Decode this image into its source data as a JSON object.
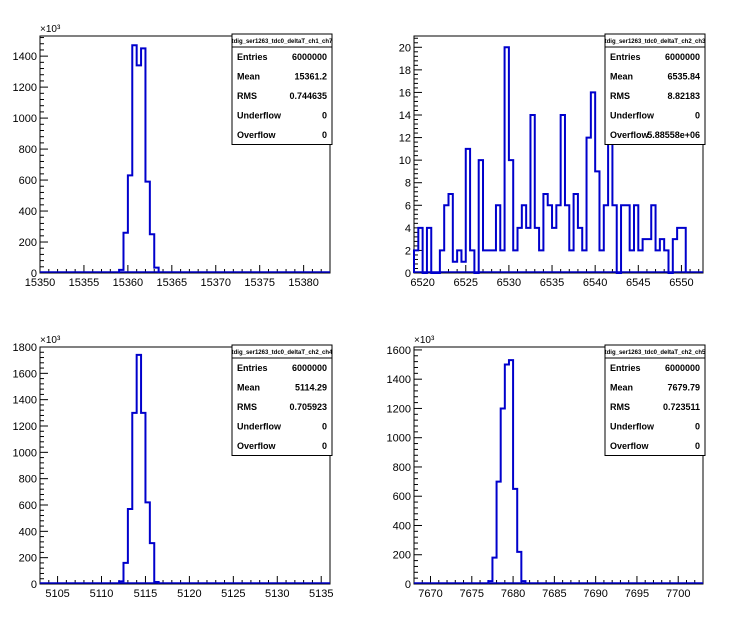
{
  "chart_data": [
    {
      "type": "bar",
      "name": "tdig_ser1263_tdc0_deltaT_ch1_ch7",
      "exponent_label": "×10³",
      "xlim": [
        15350,
        15383
      ],
      "ylim": [
        0,
        1530
      ],
      "xticks": [
        15350,
        15355,
        15360,
        15365,
        15370,
        15375,
        15380
      ],
      "yticks": [
        0,
        200,
        400,
        600,
        800,
        1000,
        1200,
        1400
      ],
      "ytick_labels": [
        "0",
        "200",
        "400",
        "600",
        "800",
        "1000",
        "1200",
        "1400"
      ],
      "bins": [
        {
          "x": 15359.0,
          "y": 20
        },
        {
          "x": 15359.5,
          "y": 260
        },
        {
          "x": 15360.0,
          "y": 630
        },
        {
          "x": 15360.5,
          "y": 1470
        },
        {
          "x": 15361.0,
          "y": 1340
        },
        {
          "x": 15361.5,
          "y": 1450
        },
        {
          "x": 15362.0,
          "y": 590
        },
        {
          "x": 15362.5,
          "y": 250
        },
        {
          "x": 15363.0,
          "y": 35
        }
      ],
      "bin_width": 0.5,
      "stats": {
        "title": "tdig_ser1263_tdc0_deltaT_ch1_ch7",
        "rows": [
          {
            "label": "Entries",
            "value": "6000000"
          },
          {
            "label": "Mean",
            "value": "15361.2"
          },
          {
            "label": "RMS",
            "value": "0.744635"
          },
          {
            "label": "Underflow",
            "value": "0"
          },
          {
            "label": "Overflow",
            "value": "0"
          }
        ]
      },
      "line_color": "#0000cc"
    },
    {
      "type": "bar",
      "name": "tdig_ser1263_tdc0_deltaT_ch2_ch3",
      "exponent_label": "",
      "xlim": [
        6519,
        6552.5
      ],
      "ylim": [
        0,
        21
      ],
      "xticks": [
        6520,
        6525,
        6530,
        6535,
        6540,
        6545,
        6550
      ],
      "yticks": [
        0,
        2,
        4,
        6,
        8,
        10,
        12,
        14,
        16,
        18,
        20
      ],
      "ytick_labels": [
        "0",
        "2",
        "4",
        "6",
        "8",
        "10",
        "12",
        "14",
        "16",
        "18",
        "20"
      ],
      "bins": [
        {
          "x": 6519.0,
          "y": 2
        },
        {
          "x": 6519.5,
          "y": 4
        },
        {
          "x": 6520.0,
          "y": 0
        },
        {
          "x": 6520.5,
          "y": 4
        },
        {
          "x": 6521.0,
          "y": 0
        },
        {
          "x": 6521.5,
          "y": 0
        },
        {
          "x": 6522.0,
          "y": 2
        },
        {
          "x": 6522.5,
          "y": 6
        },
        {
          "x": 6523.0,
          "y": 7
        },
        {
          "x": 6523.5,
          "y": 1
        },
        {
          "x": 6524.0,
          "y": 2
        },
        {
          "x": 6524.5,
          "y": 1
        },
        {
          "x": 6525.0,
          "y": 11
        },
        {
          "x": 6525.5,
          "y": 2
        },
        {
          "x": 6526.0,
          "y": 0
        },
        {
          "x": 6526.5,
          "y": 10
        },
        {
          "x": 6527.0,
          "y": 2
        },
        {
          "x": 6527.5,
          "y": 2
        },
        {
          "x": 6528.0,
          "y": 2
        },
        {
          "x": 6528.5,
          "y": 6
        },
        {
          "x": 6529.0,
          "y": 2
        },
        {
          "x": 6529.5,
          "y": 20
        },
        {
          "x": 6530.0,
          "y": 10
        },
        {
          "x": 6530.5,
          "y": 2
        },
        {
          "x": 6531.0,
          "y": 4
        },
        {
          "x": 6531.5,
          "y": 6
        },
        {
          "x": 6532.0,
          "y": 4
        },
        {
          "x": 6532.5,
          "y": 14
        },
        {
          "x": 6533.0,
          "y": 4
        },
        {
          "x": 6533.5,
          "y": 2
        },
        {
          "x": 6534.0,
          "y": 7
        },
        {
          "x": 6534.5,
          "y": 6
        },
        {
          "x": 6535.0,
          "y": 4
        },
        {
          "x": 6535.5,
          "y": 6
        },
        {
          "x": 6536.0,
          "y": 14
        },
        {
          "x": 6536.5,
          "y": 6
        },
        {
          "x": 6537.0,
          "y": 2
        },
        {
          "x": 6537.5,
          "y": 7
        },
        {
          "x": 6538.0,
          "y": 4
        },
        {
          "x": 6538.5,
          "y": 2
        },
        {
          "x": 6539.0,
          "y": 12
        },
        {
          "x": 6539.5,
          "y": 16
        },
        {
          "x": 6540.0,
          "y": 9
        },
        {
          "x": 6540.5,
          "y": 2
        },
        {
          "x": 6541.0,
          "y": 6
        },
        {
          "x": 6541.5,
          "y": 12
        },
        {
          "x": 6542.0,
          "y": 6
        },
        {
          "x": 6542.5,
          "y": 0
        },
        {
          "x": 6543.0,
          "y": 6
        },
        {
          "x": 6543.5,
          "y": 6
        },
        {
          "x": 6544.0,
          "y": 2
        },
        {
          "x": 6544.5,
          "y": 6
        },
        {
          "x": 6545.0,
          "y": 2
        },
        {
          "x": 6545.5,
          "y": 3
        },
        {
          "x": 6546.0,
          "y": 3
        },
        {
          "x": 6546.5,
          "y": 6
        },
        {
          "x": 6547.0,
          "y": 2
        },
        {
          "x": 6547.5,
          "y": 3
        },
        {
          "x": 6548.0,
          "y": 2
        },
        {
          "x": 6548.5,
          "y": 0
        },
        {
          "x": 6549.0,
          "y": 3
        },
        {
          "x": 6549.5,
          "y": 4
        },
        {
          "x": 6550.0,
          "y": 4
        }
      ],
      "bin_width": 0.5,
      "stats": {
        "title": "tdig_ser1263_tdc0_deltaT_ch2_ch3",
        "rows": [
          {
            "label": "Entries",
            "value": "6000000"
          },
          {
            "label": "Mean",
            "value": "6535.84"
          },
          {
            "label": "RMS",
            "value": "8.82183"
          },
          {
            "label": "Underflow",
            "value": "0"
          },
          {
            "label": "Overflow",
            "value": "5.88558e+06"
          }
        ]
      },
      "line_color": "#0000cc"
    },
    {
      "type": "bar",
      "name": "tdig_ser1263_tdc0_deltaT_ch2_ch4",
      "exponent_label": "×10³",
      "xlim": [
        5103,
        5136
      ],
      "ylim": [
        0,
        1800
      ],
      "xticks": [
        5105,
        5110,
        5115,
        5120,
        5125,
        5130,
        5135
      ],
      "yticks": [
        0,
        200,
        400,
        600,
        800,
        1000,
        1200,
        1400,
        1600,
        1800
      ],
      "ytick_labels": [
        "0",
        "200",
        "400",
        "600",
        "800",
        "1000",
        "1200",
        "1400",
        "1600",
        "1800"
      ],
      "bins": [
        {
          "x": 5112.0,
          "y": 20
        },
        {
          "x": 5112.5,
          "y": 160
        },
        {
          "x": 5113.0,
          "y": 570
        },
        {
          "x": 5113.5,
          "y": 1300
        },
        {
          "x": 5114.0,
          "y": 1740
        },
        {
          "x": 5114.5,
          "y": 1300
        },
        {
          "x": 5115.0,
          "y": 620
        },
        {
          "x": 5115.5,
          "y": 310
        },
        {
          "x": 5116.0,
          "y": 15
        }
      ],
      "bin_width": 0.5,
      "stats": {
        "title": "tdig_ser1263_tdc0_deltaT_ch2_ch4",
        "rows": [
          {
            "label": "Entries",
            "value": "6000000"
          },
          {
            "label": "Mean",
            "value": "5114.29"
          },
          {
            "label": "RMS",
            "value": "0.705923"
          },
          {
            "label": "Underflow",
            "value": "0"
          },
          {
            "label": "Overflow",
            "value": "0"
          }
        ]
      },
      "line_color": "#0000cc"
    },
    {
      "type": "bar",
      "name": "tdig_ser1263_tdc0_deltaT_ch2_ch5",
      "exponent_label": "×10³",
      "xlim": [
        7668,
        7703
      ],
      "ylim": [
        0,
        1620
      ],
      "xticks": [
        7670,
        7675,
        7680,
        7685,
        7690,
        7695,
        7700
      ],
      "yticks": [
        0,
        200,
        400,
        600,
        800,
        1000,
        1200,
        1400,
        1600
      ],
      "ytick_labels": [
        "0",
        "200",
        "400",
        "600",
        "800",
        "1000",
        "1200",
        "1400",
        "1600"
      ],
      "bins": [
        {
          "x": 7677.0,
          "y": 20
        },
        {
          "x": 7677.5,
          "y": 180
        },
        {
          "x": 7678.0,
          "y": 700
        },
        {
          "x": 7678.5,
          "y": 1200
        },
        {
          "x": 7679.0,
          "y": 1500
        },
        {
          "x": 7679.5,
          "y": 1530
        },
        {
          "x": 7680.0,
          "y": 650
        },
        {
          "x": 7680.5,
          "y": 220
        },
        {
          "x": 7681.0,
          "y": 20
        }
      ],
      "bin_width": 0.5,
      "stats": {
        "title": "tdig_ser1263_tdc0_deltaT_ch2_ch5",
        "rows": [
          {
            "label": "Entries",
            "value": "6000000"
          },
          {
            "label": "Mean",
            "value": "7679.79"
          },
          {
            "label": "RMS",
            "value": "0.723511"
          },
          {
            "label": "Underflow",
            "value": "0"
          },
          {
            "label": "Overflow",
            "value": "0"
          }
        ]
      },
      "line_color": "#0000cc"
    }
  ]
}
